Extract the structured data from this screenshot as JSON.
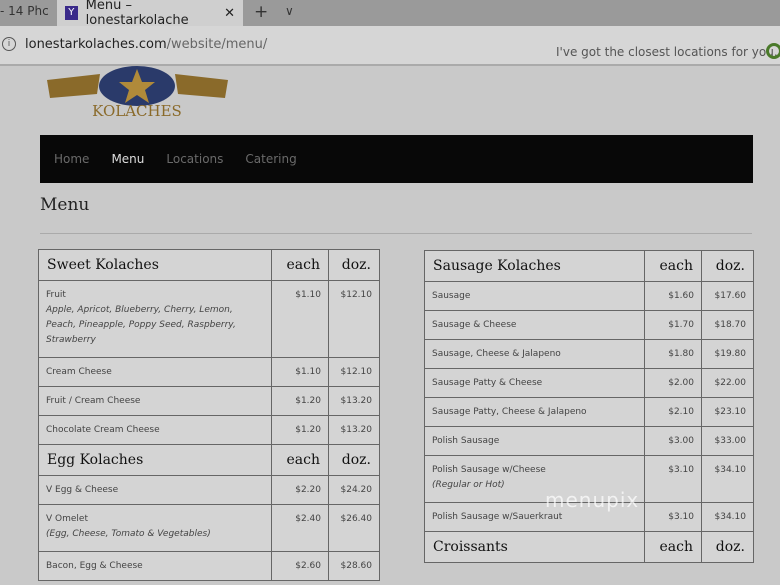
{
  "browser": {
    "prev_tab": "- 14 Phc",
    "tab_title": "Menu – lonestarkolache",
    "tab_favicon": "Y",
    "url_domain": "lonestarkolaches.com",
    "url_path": "/website/menu/",
    "cortana_text": "I've got the closest locations for you."
  },
  "logo": {
    "text": "KOLACHES"
  },
  "nav": [
    {
      "label": "Home"
    },
    {
      "label": "Menu"
    },
    {
      "label": "Locations"
    },
    {
      "label": "Catering"
    }
  ],
  "page_title": "Menu",
  "left_sections": [
    {
      "title": "Sweet Kolaches",
      "each": "each",
      "doz": "doz.",
      "items": [
        {
          "name": "Fruit",
          "desc": "Apple, Apricot, Blueberry, Cherry, Lemon, Peach, Pineapple, Poppy Seed, Raspberry, Strawberry",
          "each": "$1.10",
          "doz": "$12.10"
        },
        {
          "name": "Cream Cheese",
          "each": "$1.10",
          "doz": "$12.10"
        },
        {
          "name": "Fruit / Cream Cheese",
          "each": "$1.20",
          "doz": "$13.20"
        },
        {
          "name": "Chocolate Cream Cheese",
          "each": "$1.20",
          "doz": "$13.20"
        }
      ]
    },
    {
      "title": "Egg Kolaches",
      "each": "each",
      "doz": "doz.",
      "items": [
        {
          "name": "V Egg & Cheese",
          "each": "$2.20",
          "doz": "$24.20"
        },
        {
          "name": "V Omelet",
          "desc": "(Egg, Cheese, Tomato & Vegetables)",
          "each": "$2.40",
          "doz": "$26.40"
        },
        {
          "name": "Bacon, Egg & Cheese",
          "each": "$2.60",
          "doz": "$28.60"
        }
      ]
    }
  ],
  "right_sections": [
    {
      "title": "Sausage Kolaches",
      "each": "each",
      "doz": "doz.",
      "items": [
        {
          "name": "Sausage",
          "each": "$1.60",
          "doz": "$17.60"
        },
        {
          "name": "Sausage & Cheese",
          "each": "$1.70",
          "doz": "$18.70"
        },
        {
          "name": "Sausage, Cheese & Jalapeno",
          "each": "$1.80",
          "doz": "$19.80"
        },
        {
          "name": "Sausage Patty & Cheese",
          "each": "$2.00",
          "doz": "$22.00"
        },
        {
          "name": "Sausage Patty, Cheese & Jalapeno",
          "each": "$2.10",
          "doz": "$23.10"
        },
        {
          "name": "Polish Sausage",
          "each": "$3.00",
          "doz": "$33.00"
        },
        {
          "name": "Polish Sausage w/Cheese",
          "desc": "(Regular or Hot)",
          "each": "$3.10",
          "doz": "$34.10"
        },
        {
          "name": "Polish Sausage w/Sauerkraut",
          "each": "$3.10",
          "doz": "$34.10"
        }
      ]
    },
    {
      "title": "Croissants",
      "each": "each",
      "doz": "doz.",
      "items": []
    }
  ],
  "watermark": "menupix"
}
